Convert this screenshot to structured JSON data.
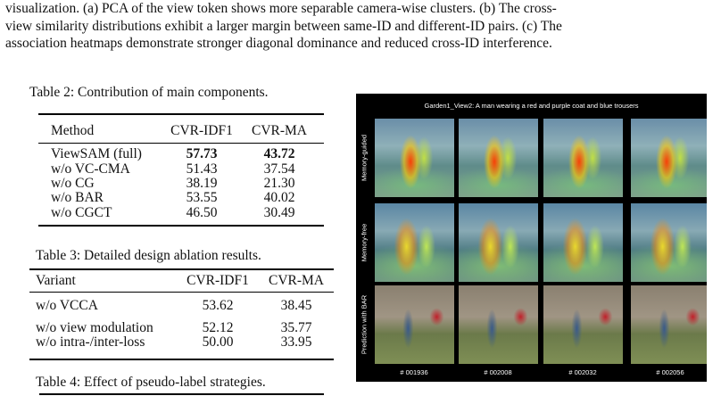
{
  "paragraph": [
    "visualization. (a) PCA of the view token shows more separable camera-wise clusters. (b) The cross-",
    "view similarity distributions exhibit a larger margin between same-ID and different-ID pairs. (c) The",
    "association heatmaps demonstrate stronger diagonal dominance and reduced cross-ID interference."
  ],
  "table2": {
    "caption": "Table 2: Contribution of main components.",
    "header": [
      "Method",
      "CVR-IDF1",
      "CVR-MA"
    ],
    "rows": [
      [
        "ViewSAM (full)",
        "57.73",
        "43.72"
      ],
      [
        "w/o VC-CMA",
        "51.43",
        "37.54"
      ],
      [
        "w/o CG",
        "38.19",
        "21.30"
      ],
      [
        "w/o BAR",
        "53.55",
        "40.02"
      ],
      [
        "w/o CGCT",
        "46.50",
        "30.49"
      ]
    ]
  },
  "table3": {
    "caption": "Table 3: Detailed design ablation results.",
    "header": [
      "Variant",
      "CVR-IDF1",
      "CVR-MA"
    ],
    "rows": [
      [
        "w/o VCCA",
        "53.62",
        "38.45"
      ],
      [
        "w/o view modulation",
        "52.12",
        "35.77"
      ],
      [
        "w/o intra-/inter-loss",
        "50.00",
        "33.95"
      ]
    ]
  },
  "table4": {
    "caption": "Table 4: Effect of pseudo-label strategies."
  },
  "figure": {
    "title": "Garden1_View2: A man wearing a red and purple coat and blue trousers",
    "row_labels": [
      "Memory-guided",
      "Memory-free",
      "Prediction with BAR"
    ],
    "frame_labels": [
      "# 001936",
      "# 002008",
      "# 002032",
      "# 002056"
    ]
  }
}
